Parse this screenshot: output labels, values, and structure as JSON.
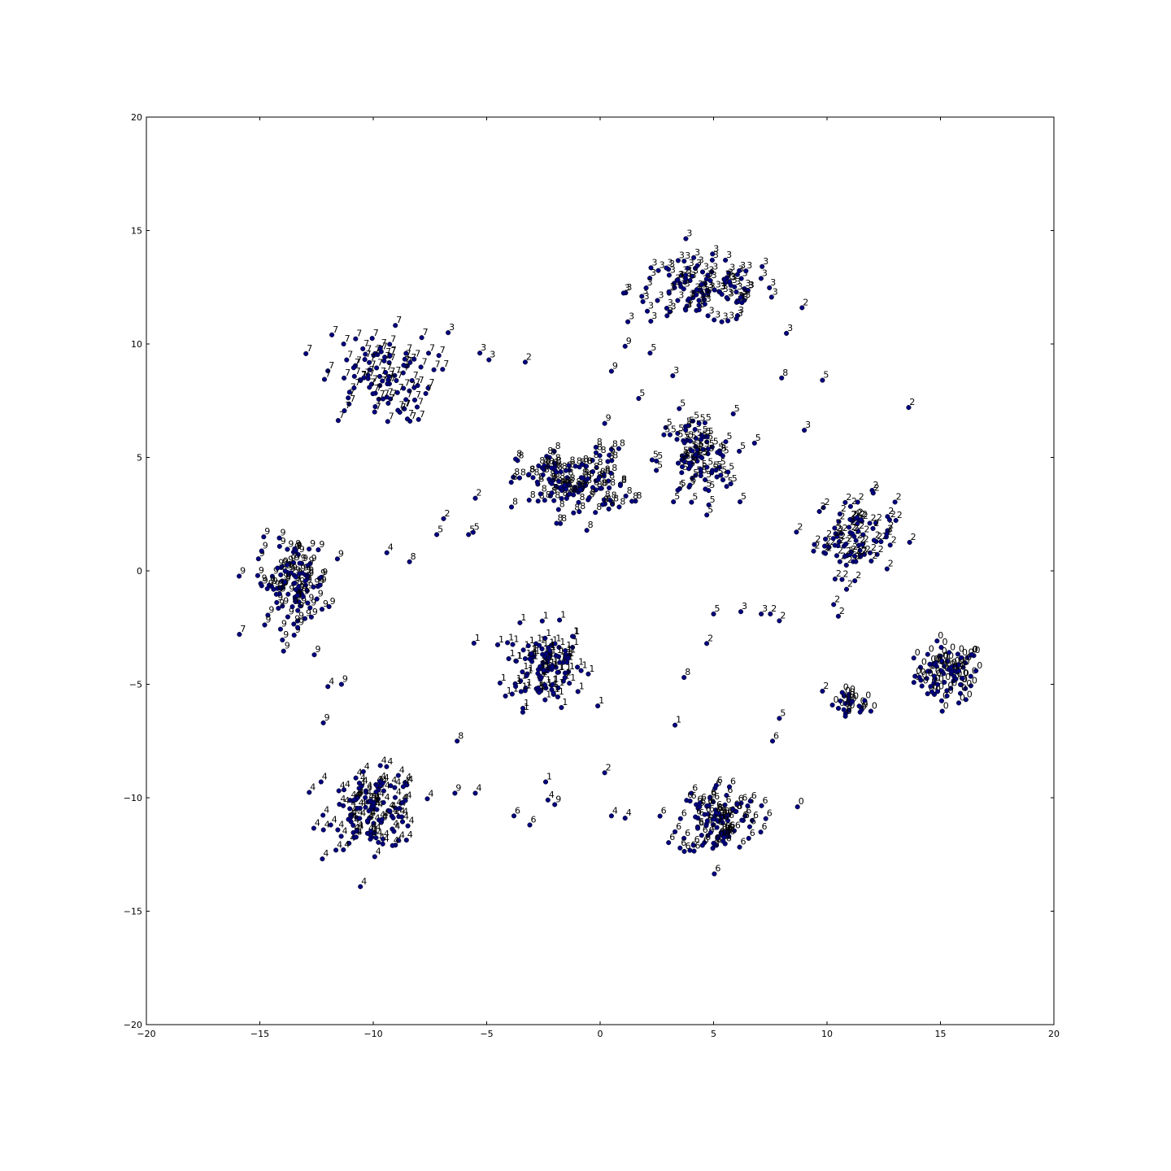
{
  "chart_data": {
    "type": "scatter",
    "title": "",
    "xlabel": "",
    "ylabel": "",
    "xlim": [
      -20,
      20
    ],
    "ylim": [
      -20,
      20
    ],
    "grid": false,
    "legend": "none",
    "x_ticks": [
      "−20",
      "−15",
      "−10",
      "−5",
      "0",
      "5",
      "10",
      "15",
      "20"
    ],
    "y_ticks": [
      "20",
      "15",
      "10",
      "5",
      "0",
      "−5",
      "−10",
      "−15",
      "−20"
    ],
    "marker_color": "#00007f",
    "clusters": [
      {
        "label": "0",
        "center": [
          15.3,
          -4.6
        ],
        "spread": [
          1.3,
          1.1
        ],
        "n": 75
      },
      {
        "label": "0",
        "center": [
          11.0,
          -6.0
        ],
        "spread": [
          0.8,
          0.6
        ],
        "n": 22
      },
      {
        "label": "1",
        "center": [
          -2.5,
          -4.2
        ],
        "spread": [
          1.6,
          1.6
        ],
        "n": 110
      },
      {
        "label": "2",
        "center": [
          11.2,
          1.5
        ],
        "spread": [
          1.6,
          1.6
        ],
        "n": 85
      },
      {
        "label": "3",
        "center": [
          4.5,
          12.3
        ],
        "spread": [
          3.0,
          1.3
        ],
        "n": 115
      },
      {
        "label": "4",
        "center": [
          -10.0,
          -10.6
        ],
        "spread": [
          1.8,
          1.5
        ],
        "n": 120
      },
      {
        "label": "5",
        "center": [
          4.2,
          4.8
        ],
        "spread": [
          1.5,
          1.9
        ],
        "n": 90
      },
      {
        "label": "6",
        "center": [
          5.2,
          -11.0
        ],
        "spread": [
          1.6,
          1.5
        ],
        "n": 100
      },
      {
        "label": "7",
        "center": [
          -9.8,
          8.5
        ],
        "spread": [
          2.2,
          1.8
        ],
        "n": 95
      },
      {
        "label": "8",
        "center": [
          -1.2,
          3.8
        ],
        "spread": [
          2.2,
          1.4
        ],
        "n": 120
      },
      {
        "label": "9",
        "center": [
          -13.6,
          -0.6
        ],
        "spread": [
          1.4,
          1.7
        ],
        "n": 100
      }
    ],
    "points": [
      {
        "x": 13.6,
        "y": 7.2,
        "label": "2"
      },
      {
        "x": 8.0,
        "y": 8.5,
        "label": "8"
      },
      {
        "x": 9.8,
        "y": -5.3,
        "label": "2"
      },
      {
        "x": 7.9,
        "y": -6.5,
        "label": "5"
      },
      {
        "x": 8.7,
        "y": -10.4,
        "label": "0"
      },
      {
        "x": 5.0,
        "y": -1.9,
        "label": "5"
      },
      {
        "x": 6.2,
        "y": -1.8,
        "label": "3"
      },
      {
        "x": 7.1,
        "y": -1.9,
        "label": "3"
      },
      {
        "x": 7.5,
        "y": -1.9,
        "label": "2"
      },
      {
        "x": 7.9,
        "y": -2.2,
        "label": "2"
      },
      {
        "x": 4.7,
        "y": -3.2,
        "label": "2"
      },
      {
        "x": 10.5,
        "y": -2.0,
        "label": "2"
      },
      {
        "x": 3.7,
        "y": -4.7,
        "label": "8"
      },
      {
        "x": 3.3,
        "y": -6.8,
        "label": "1"
      },
      {
        "x": -2.3,
        "y": -10.1,
        "label": "4"
      },
      {
        "x": -2.0,
        "y": -10.3,
        "label": "9"
      },
      {
        "x": 0.2,
        "y": -8.9,
        "label": "2"
      },
      {
        "x": -2.4,
        "y": -9.3,
        "label": "1"
      },
      {
        "x": -3.1,
        "y": -11.2,
        "label": "6"
      },
      {
        "x": -3.8,
        "y": -10.8,
        "label": "6"
      },
      {
        "x": -6.3,
        "y": -7.5,
        "label": "8"
      },
      {
        "x": -5.8,
        "y": 1.6,
        "label": "5"
      },
      {
        "x": -5.6,
        "y": 1.7,
        "label": "5"
      },
      {
        "x": -7.2,
        "y": 1.6,
        "label": "5"
      },
      {
        "x": -5.5,
        "y": 3.2,
        "label": "2"
      },
      {
        "x": -6.9,
        "y": 2.3,
        "label": "2"
      },
      {
        "x": -8.4,
        "y": 0.4,
        "label": "8"
      },
      {
        "x": -9.4,
        "y": 0.8,
        "label": "4"
      },
      {
        "x": -6.7,
        "y": 10.5,
        "label": "3"
      },
      {
        "x": -4.9,
        "y": 9.3,
        "label": "3"
      },
      {
        "x": -5.3,
        "y": 9.6,
        "label": "3"
      },
      {
        "x": -3.3,
        "y": 9.2,
        "label": "2"
      },
      {
        "x": 0.5,
        "y": 8.8,
        "label": "9"
      },
      {
        "x": 3.2,
        "y": 8.6,
        "label": "3"
      },
      {
        "x": 9.8,
        "y": 8.4,
        "label": "5"
      },
      {
        "x": 8.9,
        "y": 11.6,
        "label": "2"
      },
      {
        "x": 9.0,
        "y": 6.2,
        "label": "3"
      },
      {
        "x": 0.2,
        "y": 6.5,
        "label": "9"
      },
      {
        "x": 0.4,
        "y": 5.1,
        "label": "5"
      },
      {
        "x": 1.7,
        "y": 7.6,
        "label": "5"
      },
      {
        "x": 1.1,
        "y": 9.9,
        "label": "9"
      },
      {
        "x": 2.2,
        "y": 9.6,
        "label": "5"
      },
      {
        "x": -12.0,
        "y": -5.1,
        "label": "4"
      },
      {
        "x": -11.4,
        "y": -5.0,
        "label": "9"
      },
      {
        "x": -12.2,
        "y": -6.7,
        "label": "9"
      },
      {
        "x": -12.3,
        "y": -9.3,
        "label": "4"
      },
      {
        "x": -5.5,
        "y": -9.8,
        "label": "4"
      },
      {
        "x": -6.4,
        "y": -9.8,
        "label": "9"
      },
      {
        "x": 0.5,
        "y": -10.8,
        "label": "4"
      },
      {
        "x": 1.1,
        "y": -10.9,
        "label": "4"
      },
      {
        "x": 7.6,
        "y": -7.5,
        "label": "6"
      },
      {
        "x": -15.9,
        "y": -2.8,
        "label": "7"
      },
      {
        "x": -12.6,
        "y": -3.7,
        "label": "9"
      }
    ]
  }
}
